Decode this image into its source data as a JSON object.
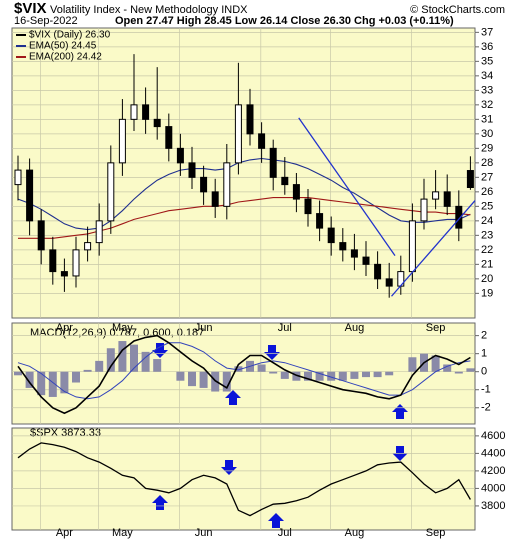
{
  "chart_data": [
    {
      "type": "candlestick",
      "title": "$VIX",
      "subtitle": "Volatility Index - New Methodology INDX",
      "source": "© StockCharts.com",
      "date": "16-Sep-2022",
      "quote": "Open 27.47 High 28.45 Low 26.14 Close 26.30 Chg +0.03 (+0.11%)",
      "name": "$VIX (Daily) 26.30",
      "color": "#000000",
      "categories": [
        null,
        null,
        null,
        null,
        "Apr",
        null,
        null,
        null,
        null,
        "May",
        null,
        null,
        null,
        null,
        null,
        null,
        "Jun",
        null,
        null,
        null,
        null,
        null,
        null,
        "Jul",
        null,
        null,
        null,
        null,
        null,
        "Aug",
        null,
        null,
        null,
        null,
        null,
        null,
        "Sep",
        null,
        null,
        null
      ],
      "open": [
        26.5,
        27.5,
        24,
        22,
        20.5,
        20.2,
        22,
        22.5,
        24,
        28,
        31,
        32,
        31,
        30.5,
        29,
        28,
        27,
        26,
        25,
        28,
        32,
        30,
        29,
        27,
        26.5,
        25.5,
        24.5,
        23.5,
        22.5,
        22,
        21.5,
        21,
        20,
        19.5,
        20.5,
        24,
        25.5,
        26,
        25,
        27.47
      ],
      "high": [
        28.5,
        28.3,
        24.8,
        22.9,
        21.4,
        22.9,
        23.6,
        25.2,
        29.2,
        32.4,
        35.5,
        33.2,
        34.6,
        31.4,
        30,
        29.1,
        27.8,
        26.9,
        29.3,
        34.9,
        33.1,
        30.8,
        29.6,
        28.4,
        27.3,
        26.2,
        25.4,
        24.3,
        23.5,
        23.1,
        22.6,
        21.9,
        21.1,
        21.6,
        25.2,
        26.9,
        27.5,
        27.2,
        26.1,
        28.45
      ],
      "low": [
        25.4,
        23,
        21,
        19.6,
        19.1,
        19.4,
        21.2,
        21.6,
        23.1,
        27.1,
        30.2,
        30,
        29.6,
        28.1,
        27.1,
        26.2,
        25.1,
        24.2,
        24.1,
        27.2,
        29.2,
        28,
        26.1,
        25.8,
        24.6,
        23.6,
        22.6,
        21.6,
        21.2,
        20.6,
        20.2,
        19.3,
        18.7,
        18.9,
        19.8,
        23.4,
        24.8,
        24.4,
        22.6,
        26.14
      ],
      "close": [
        27.5,
        24,
        22,
        20.5,
        20.2,
        22,
        22.5,
        24,
        28,
        31,
        32,
        31,
        30.5,
        29,
        28,
        27,
        26,
        25,
        28,
        32,
        30,
        29,
        27,
        26.5,
        25.5,
        24.5,
        23.5,
        22.5,
        22,
        21.5,
        21,
        20,
        19.5,
        20.5,
        24,
        25.5,
        26,
        25,
        23.5,
        26.3
      ],
      "series": [
        {
          "name": "EMA(50) 24.45",
          "color": "#1f2f8f",
          "values": [
            25.5,
            25.2,
            24.8,
            24.3,
            23.8,
            23.5,
            23.4,
            23.5,
            24,
            24.7,
            25.5,
            26.2,
            26.8,
            27.2,
            27.5,
            27.6,
            27.6,
            27.5,
            27.6,
            28,
            28.2,
            28.3,
            28.2,
            28.1,
            27.9,
            27.6,
            27.2,
            26.8,
            26.3,
            25.9,
            25.4,
            24.9,
            24.4,
            24,
            23.9,
            23.9,
            24,
            24.1,
            24.1,
            24.45
          ]
        },
        {
          "name": "EMA(200) 24.42",
          "color": "#a01818",
          "values": [
            22.8,
            22.8,
            22.8,
            22.8,
            22.9,
            23,
            23.1,
            23.3,
            23.5,
            23.8,
            24.1,
            24.3,
            24.5,
            24.7,
            24.8,
            24.9,
            25,
            25,
            25.1,
            25.3,
            25.4,
            25.5,
            25.6,
            25.6,
            25.6,
            25.6,
            25.5,
            25.4,
            25.3,
            25.2,
            25.1,
            25,
            24.9,
            24.8,
            24.7,
            24.6,
            24.6,
            24.5,
            24.5,
            24.42
          ]
        }
      ],
      "trendlines": [
        {
          "color": "#2233cc",
          "x": [
            24.2,
            32.5
          ],
          "y": [
            31.1,
            21.6
          ]
        },
        {
          "color": "#2233cc",
          "x": [
            32.2,
            39.4
          ],
          "y": [
            18.8,
            25.4
          ]
        }
      ],
      "ylim": [
        17.3,
        37.3
      ],
      "yticks": [
        19,
        20,
        21,
        22,
        23,
        24,
        25,
        26,
        27,
        28,
        29,
        30,
        31,
        32,
        33,
        34,
        35,
        36,
        37
      ],
      "grid": true
    },
    {
      "type": "macd",
      "label": "MACD(12,26,9) 0.787, 0.600, 0.187",
      "series": [
        {
          "color": "#000000",
          "values": [
            0.3,
            -0.6,
            -1.4,
            -2,
            -2.3,
            -2.0,
            -1.4,
            -0.8,
            0.3,
            1.2,
            1.7,
            1.9,
            2.0,
            1.6,
            1.1,
            0.6,
            0.2,
            -0.5,
            -0.9,
            0.4,
            0.9,
            0.9,
            0.5,
            0.1,
            -0.2,
            -0.4,
            -0.6,
            -0.8,
            -1.0,
            -1.1,
            -1.2,
            -1.4,
            -1.5,
            -1.3,
            -0.2,
            0.5,
            0.9,
            0.7,
            0.4,
            0.787
          ]
        },
        {
          "color": "#3344bb",
          "values": [
            0.5,
            0.3,
            -0.1,
            -0.6,
            -1.1,
            -1.4,
            -1.5,
            -1.4,
            -1.0,
            -0.5,
            0.2,
            0.8,
            1.3,
            1.6,
            1.6,
            1.4,
            1.1,
            0.6,
            0.2,
            0.1,
            0.3,
            0.5,
            0.6,
            0.5,
            0.3,
            0.1,
            -0.1,
            -0.3,
            -0.5,
            -0.7,
            -0.9,
            -1.1,
            -1.3,
            -1.3,
            -1.0,
            -0.5,
            0.0,
            0.3,
            0.5,
            0.6
          ]
        },
        {
          "color": "#8a8aa8",
          "values": [
            -0.2,
            -0.9,
            -1.3,
            -1.4,
            -1.2,
            -0.6,
            0.1,
            0.6,
            1.3,
            1.7,
            1.5,
            1.1,
            0.7,
            0.0,
            -0.5,
            -0.8,
            -0.9,
            -1.1,
            -1.1,
            0.3,
            0.6,
            0.4,
            -0.1,
            -0.4,
            -0.5,
            -0.5,
            -0.5,
            -0.5,
            -0.5,
            -0.4,
            -0.3,
            -0.3,
            -0.2,
            0.0,
            0.8,
            1.0,
            0.9,
            0.4,
            -0.1,
            0.187
          ]
        }
      ],
      "ylim": [
        -2.9,
        2.7
      ],
      "yticks": [
        -2,
        -1,
        0,
        1,
        2
      ],
      "grid": true
    },
    {
      "type": "line",
      "label": "$SPX 3873.33",
      "color": "#000000",
      "values": [
        4350,
        4450,
        4520,
        4500,
        4470,
        4420,
        4350,
        4300,
        4230,
        4150,
        4120,
        4000,
        3980,
        3950,
        4000,
        4100,
        4150,
        4120,
        4050,
        3750,
        3690,
        3760,
        3820,
        3830,
        3860,
        3900,
        3980,
        4050,
        4100,
        4150,
        4200,
        4270,
        4290,
        4300,
        4180,
        4050,
        3950,
        4000,
        4100,
        3873.33
      ],
      "ylim": [
        3525,
        4690
      ],
      "yticks": [
        3800,
        4000,
        4200,
        4400,
        4600
      ],
      "grid": true
    }
  ]
}
